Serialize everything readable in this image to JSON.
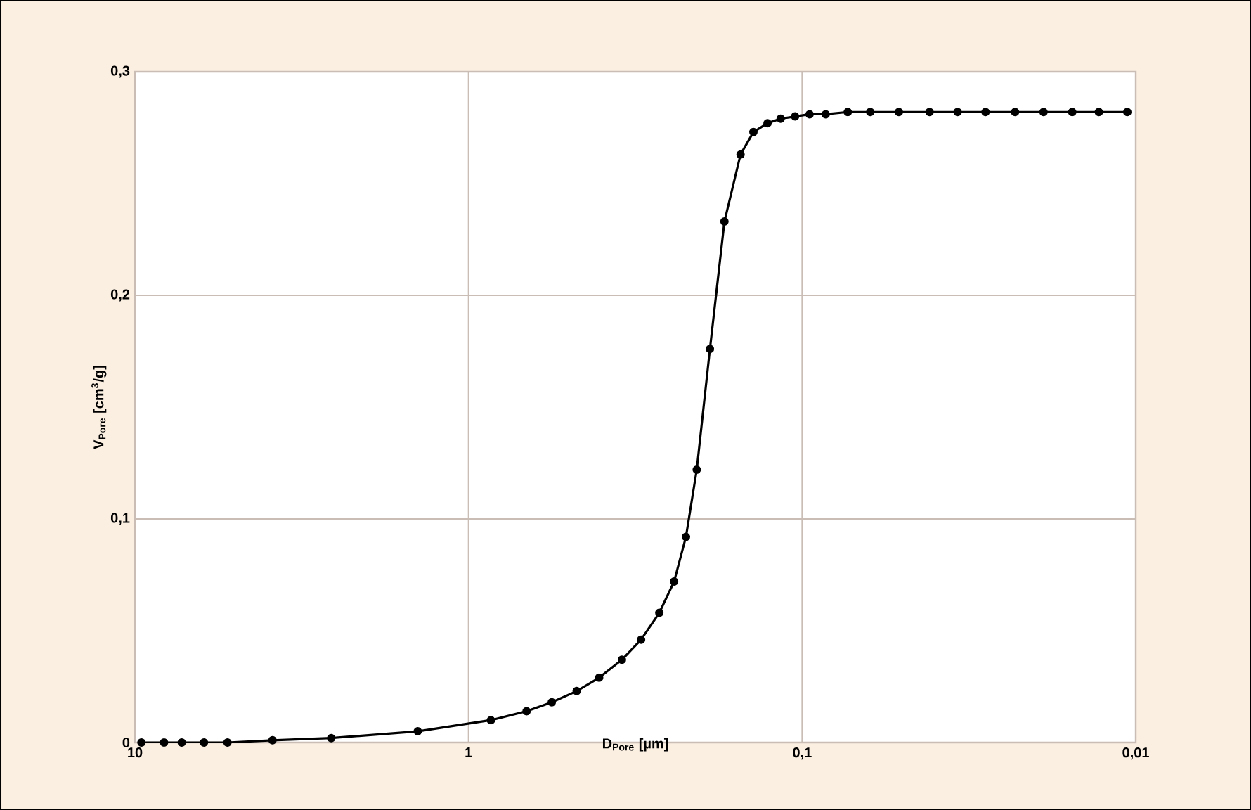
{
  "chart_data": {
    "type": "line",
    "xlabel": "D$_{Pore}$ [µm]",
    "ylabel": "V$_{Pore}$ [cm$^{3}$/g]",
    "series": [
      {
        "color": "#000000",
        "x": [
          9.56,
          8.18,
          7.24,
          6.21,
          5.28,
          3.87,
          2.58,
          1.42,
          0.857,
          0.67,
          0.563,
          0.474,
          0.406,
          0.347,
          0.304,
          0.268,
          0.242,
          0.223,
          0.207,
          0.189,
          0.171,
          0.153,
          0.14,
          0.127,
          0.116,
          0.105,
          0.095,
          0.085,
          0.073,
          0.0625,
          0.0513,
          0.0415,
          0.0342,
          0.0282,
          0.023,
          0.0189,
          0.0155,
          0.0129,
          0.0106
        ],
        "values": [
          0.0,
          0.0,
          0.0,
          0.0,
          0.0,
          0.001,
          0.002,
          0.005,
          0.01,
          0.014,
          0.018,
          0.023,
          0.029,
          0.037,
          0.046,
          0.058,
          0.072,
          0.092,
          0.122,
          0.176,
          0.233,
          0.263,
          0.273,
          0.277,
          0.279,
          0.28,
          0.281,
          0.281,
          0.282,
          0.282,
          0.282,
          0.282,
          0.282,
          0.282,
          0.282,
          0.282,
          0.282,
          0.282,
          0.282
        ]
      }
    ],
    "log": "x",
    "xlim": [
      10,
      0.01
    ],
    "xticks": [
      10,
      1,
      {
        "value": 0.1,
        "label": "0,1"
      },
      {
        "value": 0.01,
        "label": "0,01"
      }
    ],
    "ylim": [
      0,
      0.3
    ],
    "yticks": [
      0,
      {
        "value": 0.1,
        "label": "0,1"
      },
      {
        "value": 0.2,
        "label": "0,2"
      },
      {
        "value": 0.3,
        "label": "0,3"
      }
    ],
    "grid": true,
    "marker": "circle",
    "line_style": "solid"
  }
}
